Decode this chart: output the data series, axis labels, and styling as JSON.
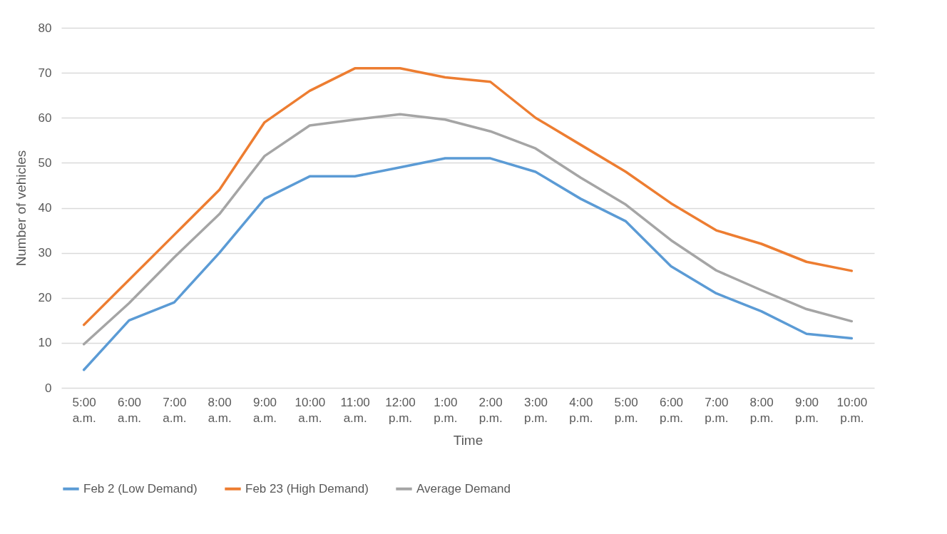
{
  "chart_data": {
    "type": "line",
    "xlabel": "Time",
    "ylabel": "Number of vehicles",
    "categories": [
      "5:00 a.m.",
      "6:00 a.m.",
      "7:00 a.m.",
      "8:00 a.m.",
      "9:00 a.m.",
      "10:00 a.m.",
      "11:00 a.m.",
      "12:00 p.m.",
      "1:00 p.m.",
      "2:00 p.m.",
      "3:00 p.m.",
      "4:00 p.m.",
      "5:00 p.m.",
      "6:00 p.m.",
      "7:00 p.m.",
      "8:00 p.m.",
      "9:00 p.m.",
      "10:00 p.m."
    ],
    "series": [
      {
        "name": "Feb 2 (Low Demand)",
        "color": "#5b9bd5",
        "values": [
          4,
          15,
          19,
          30,
          42,
          47,
          47,
          49,
          51,
          51,
          48,
          42,
          37,
          27,
          21,
          17,
          12,
          11
        ]
      },
      {
        "name": "Feb 23 (High Demand)",
        "color": "#ed7d31",
        "values": [
          14,
          24,
          34,
          44,
          59,
          66,
          71,
          71,
          69,
          68,
          60,
          54,
          48,
          41,
          35,
          32,
          28,
          26
        ]
      },
      {
        "name": "Average Demand",
        "color": "#a5a5a5",
        "values": [
          9.7,
          18.8,
          29,
          38.6,
          51.5,
          58.3,
          59.6,
          60.8,
          59.6,
          57,
          53.2,
          46.7,
          40.7,
          32.8,
          26.1,
          21.7,
          17.5,
          14.8
        ]
      }
    ],
    "ylim": [
      0,
      80
    ],
    "yticks": [
      0,
      10,
      20,
      30,
      40,
      50,
      60,
      70,
      80
    ],
    "grid": "y",
    "legend": "bottom",
    "marker": "none",
    "line_style": "solid"
  }
}
